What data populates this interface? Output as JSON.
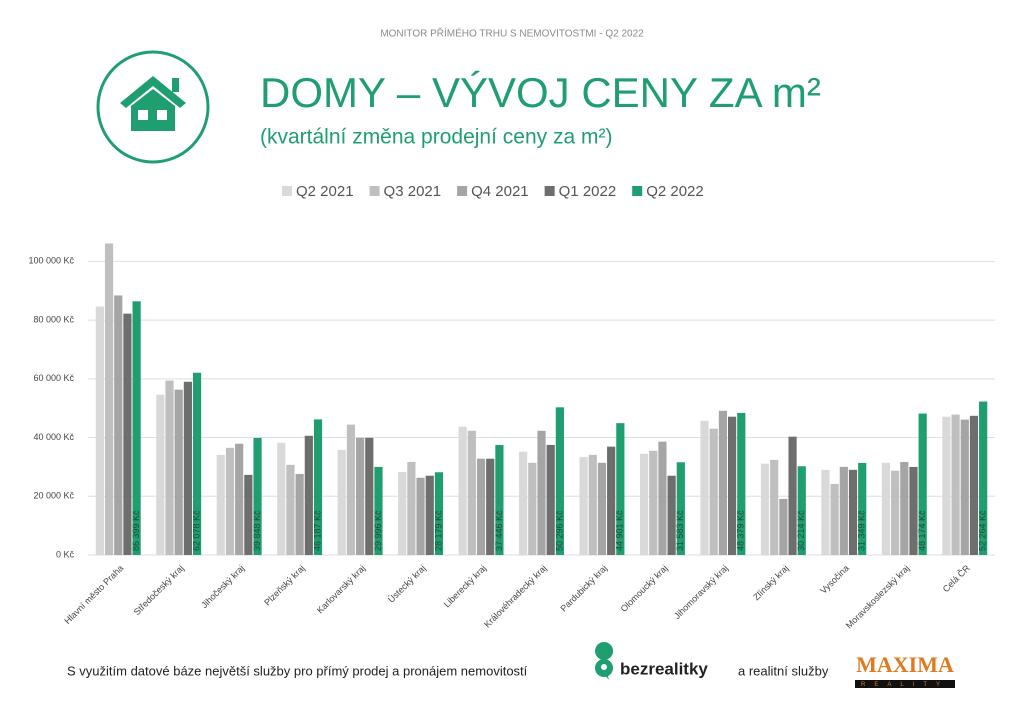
{
  "header": "MONITOR PŘÍMÉHO TRHU S NEMOVITOSTMI - Q2 2022",
  "chart_data": {
    "type": "bar",
    "title": "DOMY – VÝVOJ CENY ZA m²",
    "subtitle": "(kvartální změna prodejní ceny za m²)",
    "categories": [
      "Hlavní město Praha",
      "Středočeský kraj",
      "Jihočeský kraj",
      "Plzeňský kraj",
      "Karlovarský kraj",
      "Ústecký kraj",
      "Liberecký kraj",
      "Královéhradecký kraj",
      "Pardubický kraj",
      "Olomoucký kraj",
      "Jihomoravský kraj",
      "Zlínský kraj",
      "Vysočina",
      "Moravskoslezský kraj",
      "Celá ČR"
    ],
    "series": [
      {
        "name": "Q2 2021",
        "color": "#d9d9d9",
        "values": [
          84600,
          54600,
          34100,
          38200,
          35800,
          28300,
          43700,
          35200,
          33400,
          34500,
          45700,
          31100,
          29000,
          31400,
          47100
        ]
      },
      {
        "name": "Q3 2021",
        "color": "#bfbfbf",
        "values": [
          106100,
          59400,
          36500,
          30700,
          44400,
          31700,
          42300,
          31400,
          34100,
          35500,
          43000,
          32400,
          24200,
          28700,
          47800
        ]
      },
      {
        "name": "Q4 2021",
        "color": "#a5a5a5",
        "values": [
          88400,
          56300,
          37900,
          27600,
          39900,
          26300,
          32800,
          42300,
          31400,
          38600,
          49100,
          19100,
          30000,
          31700,
          46100
        ]
      },
      {
        "name": "Q1 2022",
        "color": "#6e6e6e",
        "values": [
          82200,
          59000,
          27300,
          40600,
          39900,
          27000,
          32800,
          37500,
          36900,
          27000,
          47100,
          40300,
          29000,
          30000,
          47400
        ]
      },
      {
        "name": "Q2 2022",
        "color": "#1f9e6f",
        "values": [
          86399,
          62078,
          39848,
          46187,
          29996,
          28179,
          37446,
          50296,
          44901,
          31583,
          48379,
          30214,
          31349,
          48174,
          52264
        ],
        "value_labels": [
          "86 399 Kč",
          "62 078 Kč",
          "39 848 Kč",
          "46 187 Kč",
          "29 996 Kč",
          "28 179 Kč",
          "37 446 Kč",
          "50 296 Kč",
          "44 901 Kč",
          "31 583 Kč",
          "48 379 Kč",
          "30 214 Kč",
          "31 349 Kč",
          "48 174 Kč",
          "52 264 Kč"
        ]
      }
    ],
    "ylim": [
      0,
      110000
    ],
    "yticks": [
      {
        "value": 0,
        "label": "0 Kč"
      },
      {
        "value": 20000,
        "label": "20 000 Kč"
      },
      {
        "value": 40000,
        "label": "40 000 Kč"
      },
      {
        "value": 60000,
        "label": "60 000 Kč"
      },
      {
        "value": 80000,
        "label": "80 000 Kč"
      },
      {
        "value": 100000,
        "label": "100 000 Kč"
      }
    ],
    "grid": true,
    "legend": "top"
  },
  "footer": {
    "text": "S využitím datové báze největší služby pro přímý prodej a pronájem nemovitostí",
    "logo1": "bezrealitky",
    "connector": "a realitní služby",
    "logo2": "MAXIMA",
    "logo2_sub": "REALITY"
  }
}
